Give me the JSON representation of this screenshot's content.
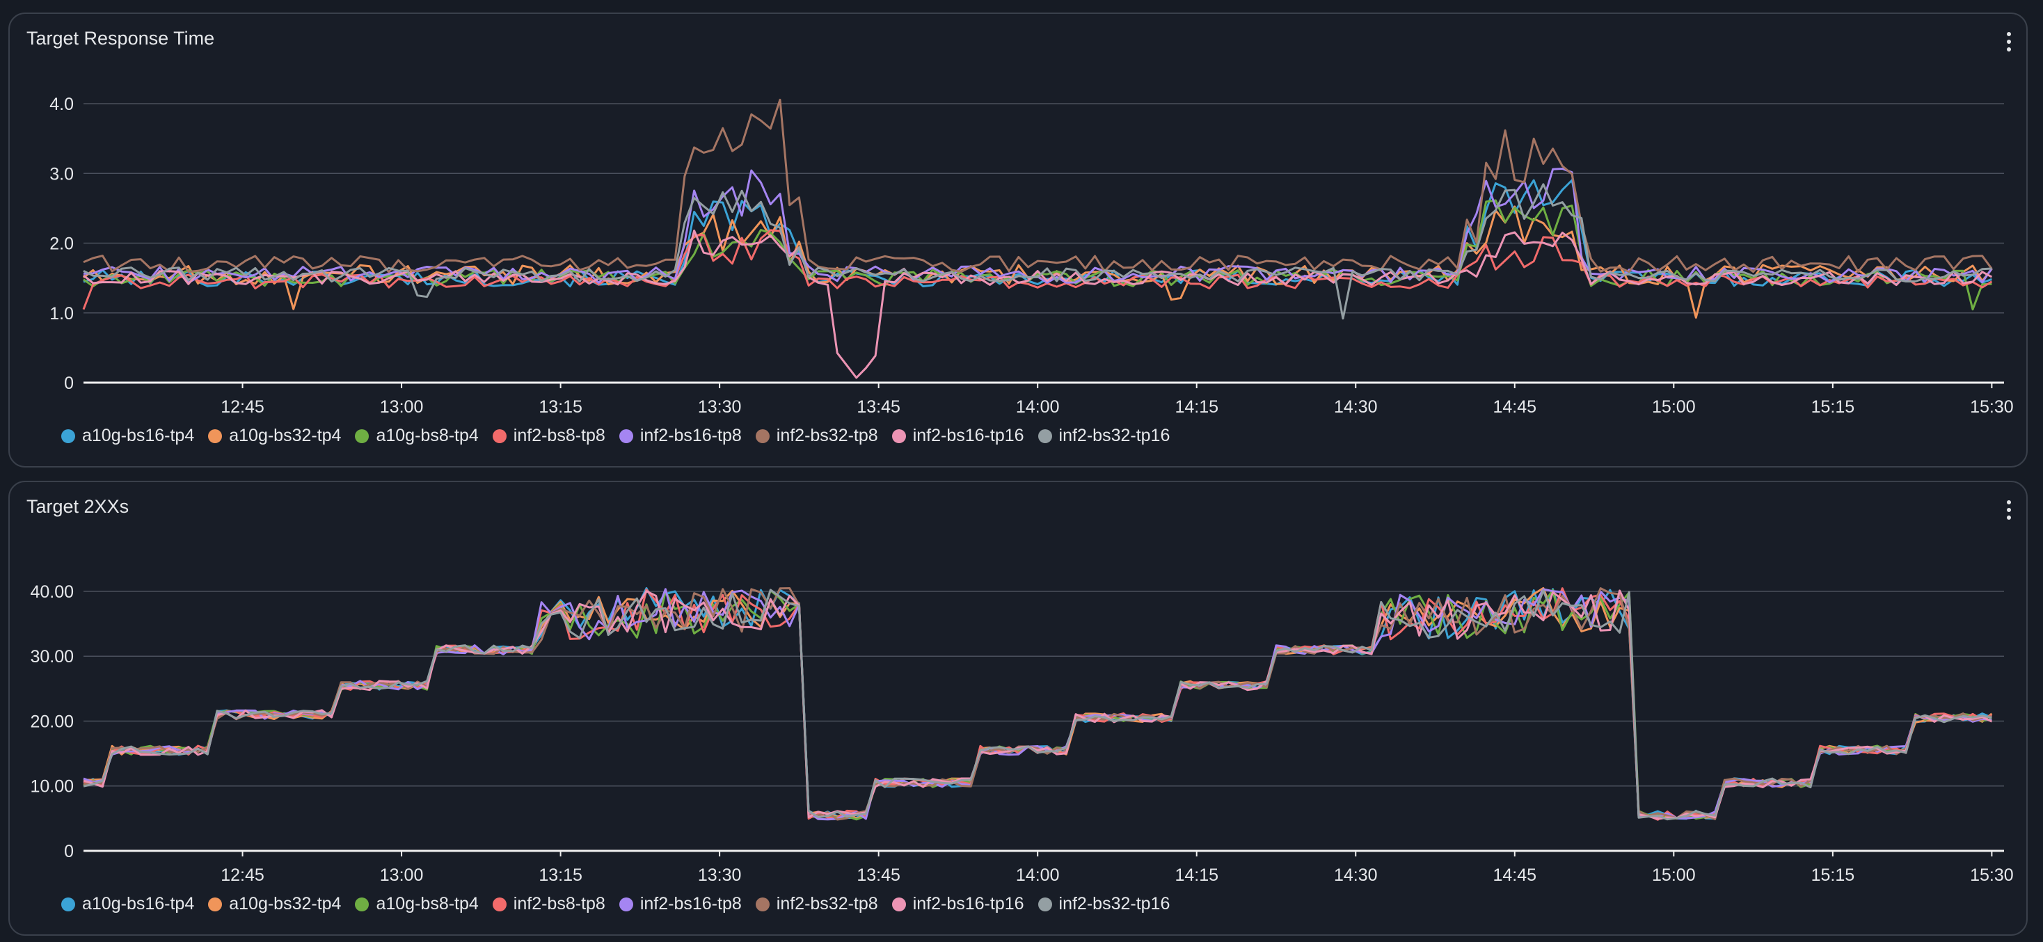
{
  "chart_data": [
    {
      "type": "line",
      "title": "Target Response Time",
      "x_ticks": [
        "12:45",
        "13:00",
        "13:15",
        "13:30",
        "13:45",
        "14:00",
        "14:15",
        "14:30",
        "14:45",
        "15:00",
        "15:15",
        "15:30"
      ],
      "x_tick_minutes": [
        765,
        780,
        795,
        810,
        825,
        840,
        855,
        870,
        885,
        900,
        915,
        930
      ],
      "x_range_minutes": [
        750,
        930.5
      ],
      "y_ticks": [
        0,
        1,
        2,
        3,
        4
      ],
      "y_tick_labels": [
        "0",
        "1.0",
        "2.0",
        "3.0",
        "4.0"
      ],
      "ylim": [
        0,
        4.0
      ],
      "grid": true,
      "legend_position": "bottom-left",
      "series": [
        {
          "name": "a10g-bs16-tp4",
          "color": "#3ba3d6",
          "base": 1.5,
          "noise": 0.12,
          "events": [
            {
              "minute": 812,
              "value": 2.4
            },
            {
              "minute": 886,
              "value": 2.7
            }
          ],
          "dips": []
        },
        {
          "name": "a10g-bs32-tp4",
          "color": "#f0955a",
          "base": 1.55,
          "noise": 0.14,
          "events": [
            {
              "minute": 812,
              "value": 2.2
            },
            {
              "minute": 886,
              "value": 2.3
            }
          ],
          "dips": [
            {
              "minute": 770,
              "value": 1.0
            },
            {
              "minute": 853,
              "value": 1.1
            },
            {
              "minute": 902,
              "value": 0.9
            }
          ]
        },
        {
          "name": "a10g-bs8-tp4",
          "color": "#6fae43",
          "base": 1.5,
          "noise": 0.12,
          "events": [
            {
              "minute": 812,
              "value": 2.1
            },
            {
              "minute": 886,
              "value": 2.4
            }
          ],
          "dips": [
            {
              "minute": 928,
              "value": 1.0
            }
          ]
        },
        {
          "name": "inf2-bs8-tp8",
          "color": "#f26b6b",
          "base": 1.45,
          "noise": 0.1,
          "events": [
            {
              "minute": 812,
              "value": 2.0
            },
            {
              "minute": 886,
              "value": 1.9
            }
          ],
          "dips": [
            {
              "minute": 750,
              "value": 1.05
            }
          ]
        },
        {
          "name": "inf2-bs16-tp8",
          "color": "#a585f2",
          "base": 1.55,
          "noise": 0.12,
          "events": [
            {
              "minute": 812,
              "value": 2.8
            },
            {
              "minute": 886,
              "value": 2.9
            }
          ],
          "dips": []
        },
        {
          "name": "inf2-bs32-tp8",
          "color": "#a57563",
          "base": 1.7,
          "noise": 0.12,
          "events": [
            {
              "minute": 812,
              "value": 3.7
            },
            {
              "minute": 886,
              "value": 3.3
            }
          ],
          "dips": []
        },
        {
          "name": "inf2-bs16-tp16",
          "color": "#ec94b4",
          "base": 1.5,
          "noise": 0.1,
          "events": [
            {
              "minute": 812,
              "value": 2.0
            },
            {
              "minute": 886,
              "value": 2.0
            }
          ],
          "dips": [
            {
              "minute": 823,
              "value": 0.05
            }
          ]
        },
        {
          "name": "inf2-bs32-tp16",
          "color": "#949fa3",
          "base": 1.55,
          "noise": 0.1,
          "events": [
            {
              "minute": 812,
              "value": 2.6
            },
            {
              "minute": 886,
              "value": 2.7
            }
          ],
          "dips": [
            {
              "minute": 782,
              "value": 1.15
            },
            {
              "minute": 869,
              "value": 0.85
            }
          ]
        }
      ]
    },
    {
      "type": "line",
      "title": "Target 2XXs",
      "x_ticks": [
        "12:45",
        "13:00",
        "13:15",
        "13:30",
        "13:45",
        "14:00",
        "14:15",
        "14:30",
        "14:45",
        "15:00",
        "15:15",
        "15:30"
      ],
      "x_tick_minutes": [
        765,
        780,
        795,
        810,
        825,
        840,
        855,
        870,
        885,
        900,
        915,
        930
      ],
      "x_range_minutes": [
        750,
        930.5
      ],
      "y_ticks": [
        0,
        10,
        20,
        30,
        40
      ],
      "y_tick_labels": [
        "0",
        "10.00",
        "20.00",
        "30.00",
        "40.00"
      ],
      "ylim": [
        0,
        43
      ],
      "grid": true,
      "legend_position": "bottom-left",
      "cycles": [
        {
          "start": 750,
          "steps": [
            [
              750,
              10.5
            ],
            [
              752,
              15.5
            ],
            [
              762,
              21
            ],
            [
              774,
              25.5
            ],
            [
              783,
              31
            ],
            [
              793,
              36
            ],
            [
              803,
              37
            ],
            [
              817.5,
              5.5
            ]
          ]
        },
        {
          "start": 817.5,
          "steps": [
            [
              817.5,
              5.5
            ],
            [
              824,
              10.5
            ],
            [
              834,
              15.5
            ],
            [
              843,
              20.5
            ],
            [
              853,
              25.5
            ],
            [
              862,
              31
            ],
            [
              872,
              36
            ],
            [
              884,
              37
            ],
            [
              896.5,
              5.5
            ]
          ]
        },
        {
          "start": 896.5,
          "steps": [
            [
              896.5,
              5.5
            ],
            [
              904,
              10.5
            ],
            [
              913,
              15.5
            ],
            [
              922,
              20.5
            ]
          ]
        }
      ],
      "series": [
        {
          "name": "a10g-bs16-tp4",
          "color": "#3ba3d6"
        },
        {
          "name": "a10g-bs32-tp4",
          "color": "#f0955a"
        },
        {
          "name": "a10g-bs8-tp4",
          "color": "#6fae43"
        },
        {
          "name": "inf2-bs8-tp8",
          "color": "#f26b6b"
        },
        {
          "name": "inf2-bs16-tp8",
          "color": "#a585f2"
        },
        {
          "name": "inf2-bs32-tp8",
          "color": "#a57563"
        },
        {
          "name": "inf2-bs16-tp16",
          "color": "#ec94b4"
        },
        {
          "name": "inf2-bs32-tp16",
          "color": "#949fa3"
        }
      ]
    }
  ],
  "colors": {
    "background": "#181d27",
    "grid": "#4a505c",
    "axis": "#f0f0f0",
    "text": "#e6e8eb"
  }
}
